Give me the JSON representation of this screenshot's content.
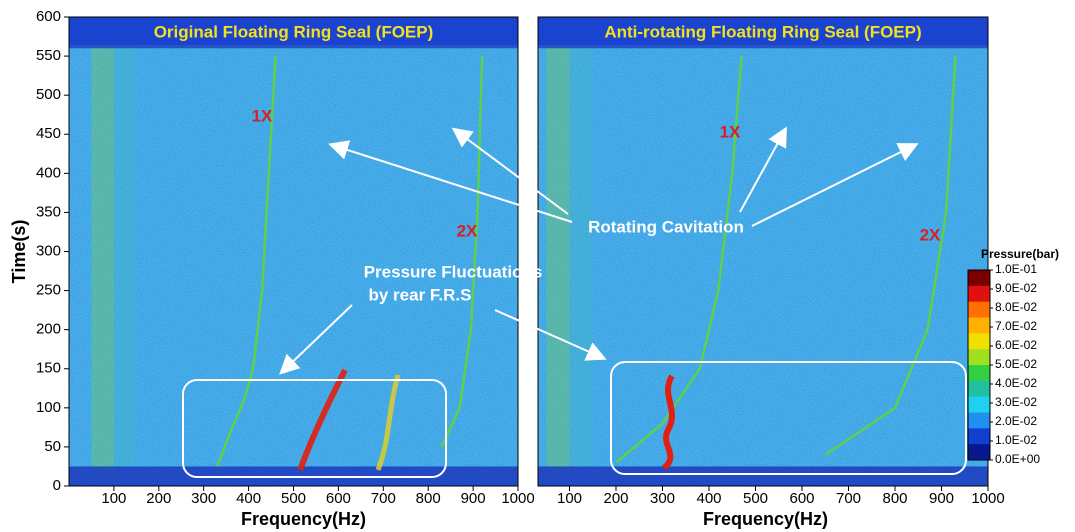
{
  "chart_data": [
    {
      "type": "spectrogram",
      "title": "Original Floating Ring Seal (FOEP)",
      "x_label": "Frequency(Hz)",
      "y_label": "Time(s)",
      "xlim": [
        0,
        1000
      ],
      "xticks": [
        100,
        200,
        300,
        400,
        500,
        600,
        700,
        800,
        900,
        1000
      ],
      "ylim": [
        0,
        600
      ],
      "yticks": [
        0,
        50,
        100,
        150,
        200,
        250,
        300,
        350,
        400,
        450,
        500,
        550,
        600
      ],
      "series": [
        {
          "name": "1X",
          "color": "#5fd04a",
          "x": [
            330,
            360,
            390,
            410,
            430,
            445,
            460
          ],
          "values": [
            25,
            70,
            110,
            150,
            250,
            400,
            550
          ]
        },
        {
          "name": "2X",
          "color": "#5fd04a",
          "x": [
            830,
            870,
            895,
            910,
            920
          ],
          "values": [
            50,
            100,
            200,
            350,
            550
          ]
        }
      ]
    },
    {
      "type": "spectrogram",
      "title": "Anti-rotating Floating Ring Seal (FOEP)",
      "x_label": "Frequency(Hz)",
      "xlim": [
        0,
        1000
      ],
      "xticks": [
        100,
        200,
        300,
        400,
        500,
        600,
        700,
        800,
        900,
        1000
      ],
      "ylim": [
        0,
        600
      ],
      "series": [
        {
          "name": "1X",
          "color": "#5fd04a",
          "x": [
            200,
            300,
            380,
            420,
            450,
            470
          ],
          "values": [
            30,
            80,
            150,
            250,
            400,
            550
          ]
        },
        {
          "name": "2X",
          "color": "#5fd04a",
          "x": [
            650,
            800,
            870,
            910,
            930
          ],
          "values": [
            40,
            100,
            200,
            350,
            550
          ]
        }
      ]
    }
  ],
  "colorbar": {
    "title": "Pressure(bar)",
    "colors": [
      "#7a0000",
      "#e01010",
      "#ff7000",
      "#ffb000",
      "#f0e000",
      "#a0e020",
      "#30d040",
      "#20c0a0",
      "#20d0f0",
      "#2090f0",
      "#1040d0",
      "#0a1890"
    ],
    "ticks": [
      {
        "value": 0.1,
        "label": "1.0E-01"
      },
      {
        "value": 0.09,
        "label": "9.0E-02"
      },
      {
        "value": 0.08,
        "label": "8.0E-02"
      },
      {
        "value": 0.07,
        "label": "7.0E-02"
      },
      {
        "value": 0.06,
        "label": "6.0E-02"
      },
      {
        "value": 0.05,
        "label": "5.0E-02"
      },
      {
        "value": 0.04,
        "label": "4.0E-02"
      },
      {
        "value": 0.03,
        "label": "3.0E-02"
      },
      {
        "value": 0.02,
        "label": "2.0E-02"
      },
      {
        "value": 0.01,
        "label": "1.0E-02"
      },
      {
        "value": 0,
        "label": "0.0E+00"
      }
    ],
    "lim": [
      0,
      0.1
    ]
  },
  "annotations": {
    "rotating": "Rotating Cavitation",
    "fluct_1": "Pressure Fluctuations",
    "fluct_2": "by rear F.R.S"
  }
}
